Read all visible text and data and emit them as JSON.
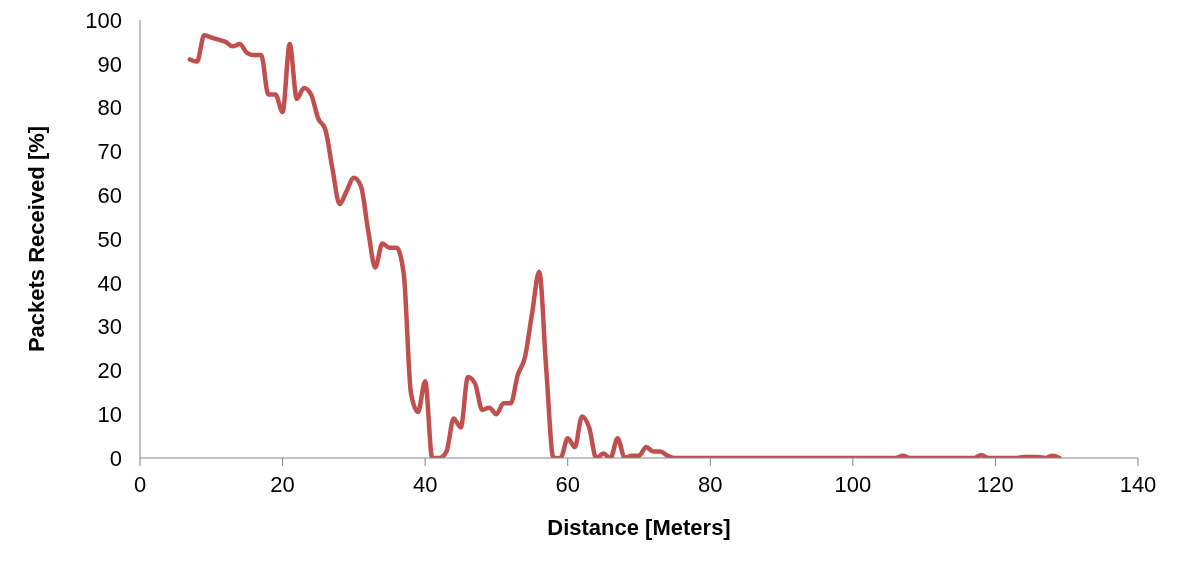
{
  "chart_data": {
    "type": "line",
    "xlabel": "Distance [Meters]",
    "ylabel": "Packets Received [%]",
    "xlim": [
      0,
      140
    ],
    "xticks": [
      0,
      20,
      40,
      60,
      80,
      100,
      120,
      140
    ],
    "ylim": [
      0,
      100
    ],
    "yticks": [
      0,
      10,
      20,
      30,
      40,
      50,
      60,
      70,
      80,
      90,
      100
    ],
    "grid": false,
    "legend": false,
    "marker": "none",
    "line_style": "solid",
    "series": [
      {
        "color": "#c0504d",
        "x": [
          7,
          8,
          9,
          10,
          11,
          12,
          13,
          14,
          15,
          16,
          17,
          18,
          19,
          20,
          21,
          22,
          23,
          24,
          25,
          26,
          27,
          28,
          29,
          30,
          31,
          32,
          33,
          34,
          35,
          36,
          37,
          38,
          39,
          40,
          41,
          42,
          43,
          44,
          45,
          46,
          47,
          48,
          49,
          50,
          51,
          52,
          53,
          54,
          55,
          56,
          57,
          58,
          59,
          60,
          61,
          62,
          63,
          64,
          65,
          66,
          67,
          68,
          69,
          70,
          71,
          72,
          73,
          74,
          75,
          106,
          107,
          108,
          117,
          118,
          119,
          123,
          124,
          125,
          126,
          127,
          128,
          129
        ],
        "values": [
          91,
          90.5,
          96.5,
          96,
          95.5,
          95,
          94,
          94.5,
          92.5,
          92,
          92,
          83,
          83,
          79,
          94.5,
          82,
          84.5,
          83,
          77.5,
          75,
          66,
          58,
          61,
          64,
          62,
          52,
          43.5,
          49,
          48,
          48,
          42,
          15,
          10.5,
          17.5,
          0,
          0,
          1.5,
          9,
          7,
          18.5,
          17,
          11,
          11.5,
          10,
          12.5,
          12.5,
          19,
          23,
          33,
          42.5,
          20,
          0,
          0,
          4.5,
          2.5,
          9.5,
          7,
          0,
          1,
          0,
          4.5,
          0,
          0.5,
          0.5,
          2.5,
          1.5,
          1.5,
          0.5,
          0,
          0,
          0.5,
          0,
          0,
          0.7,
          0,
          0,
          0.2,
          0.2,
          0.2,
          0,
          0.5,
          0
        ]
      }
    ]
  }
}
